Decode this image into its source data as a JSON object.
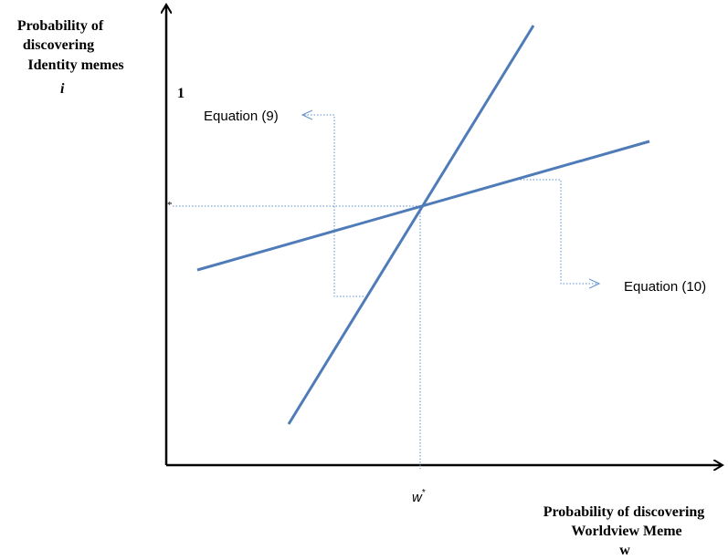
{
  "y_axis": {
    "label_lines": [
      "Probability of",
      "discovering",
      "Identity memes"
    ],
    "symbol": "i",
    "top_tick": "1",
    "star_mark": "*"
  },
  "x_axis": {
    "label_lines": [
      "Probability of discovering",
      "Worldview Meme"
    ],
    "symbol": "w",
    "star_symbol": "w",
    "star_superscript": "*"
  },
  "lines": {
    "eq9": {
      "label": "Equation (9)"
    },
    "eq10": {
      "label": "Equation (10)"
    }
  },
  "colors": {
    "line": "#4f7cb8",
    "axis": "#000000",
    "guide": "#5b8fd0"
  }
}
